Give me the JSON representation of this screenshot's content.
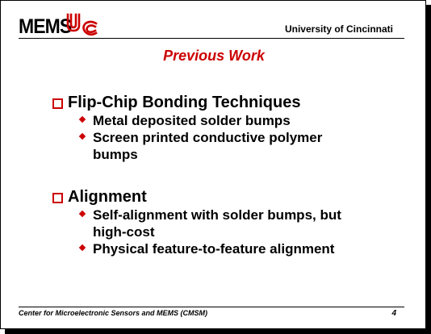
{
  "header": {
    "logo_text": "MEMS",
    "logo_mark": "UC",
    "university": "University of Cincinnati"
  },
  "title": "Previous Work",
  "sections": [
    {
      "heading": "Flip-Chip Bonding Techniques",
      "bullets": [
        "Metal deposited solder bumps",
        "Screen printed conductive polymer bumps"
      ]
    },
    {
      "heading": "Alignment",
      "bullets": [
        "Self-alignment with solder bumps, but high-cost",
        "Physical feature-to-feature alignment"
      ]
    }
  ],
  "footer": {
    "left": "Center for Microelectronic Sensors and MEMS (CMSM)",
    "page_number": "4"
  },
  "colors": {
    "accent": "#cc0000",
    "text": "#000000",
    "background": "#ffffff"
  }
}
